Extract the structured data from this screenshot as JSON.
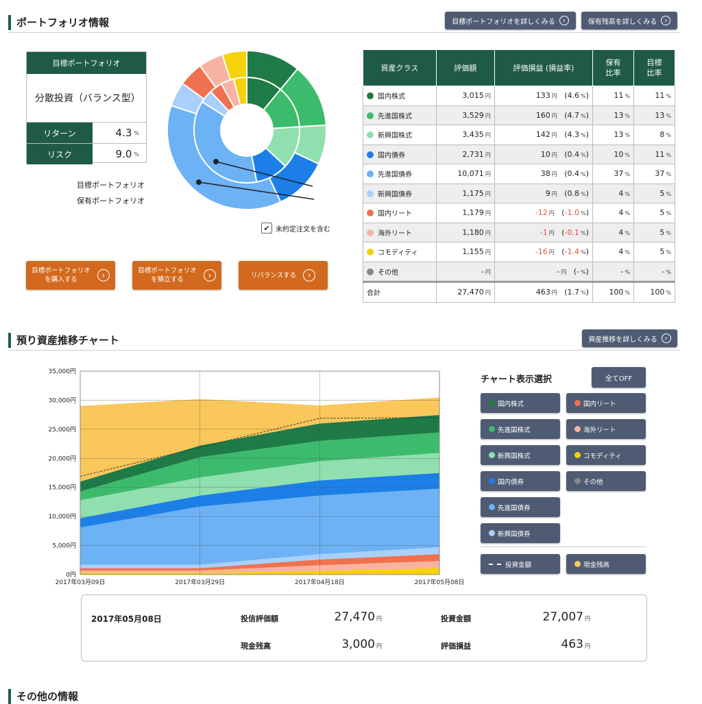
{
  "portfolio": {
    "heading": "ポートフォリオ情報",
    "btn_target_detail": "目標ポートフォリオを詳しくみる",
    "btn_holding_detail": "保有残高を詳しくみる",
    "target_box": {
      "header": "目標ポートフォリオ",
      "name": "分散投資（バランス型）",
      "return_label": "リターン",
      "return_value": "4.3",
      "risk_label": "リスク",
      "risk_value": "9.0",
      "unit": "%"
    },
    "donut": {
      "label_target": "目標ポートフォリオ",
      "label_holding": "保有ポートフォリオ",
      "checkbox_label": "未約定注文を含む",
      "checkbox_checked": true
    },
    "actions": {
      "buy_line1": "目標ポートフォリオ",
      "buy_line2": "を購入する",
      "save_line1": "目標ポートフォリオ",
      "save_line2": "を積立する",
      "rebalance": "リバランスする"
    },
    "table": {
      "headers": [
        "資産クラス",
        "評価額",
        "評価損益 (損益率)",
        "保有\n比率",
        "目標\n比率"
      ],
      "rows": [
        {
          "name": "国内株式",
          "color": "#1e7a46",
          "value": "3,015",
          "pl": "133",
          "rate": "4.6",
          "hold": "11",
          "target": "11",
          "neg": false
        },
        {
          "name": "先進国株式",
          "color": "#3dbb6c",
          "value": "3,529",
          "pl": "160",
          "rate": "4.7",
          "hold": "13",
          "target": "13",
          "neg": false
        },
        {
          "name": "新興国株式",
          "color": "#90dfae",
          "value": "3,435",
          "pl": "142",
          "rate": "4.3",
          "hold": "13",
          "target": "8",
          "neg": false
        },
        {
          "name": "国内債券",
          "color": "#1c7fe8",
          "value": "2,731",
          "pl": "10",
          "rate": "0.4",
          "hold": "10",
          "target": "11",
          "neg": false
        },
        {
          "name": "先進国債券",
          "color": "#6cb2f5",
          "value": "10,071",
          "pl": "38",
          "rate": "0.4",
          "hold": "37",
          "target": "37",
          "neg": false
        },
        {
          "name": "新興国債券",
          "color": "#a9d0fa",
          "value": "1,175",
          "pl": "9",
          "rate": "0.8",
          "hold": "4",
          "target": "5",
          "neg": false
        },
        {
          "name": "国内リート",
          "color": "#f0714f",
          "value": "1,179",
          "pl": "-12",
          "rate": "-1.0",
          "hold": "4",
          "target": "5",
          "neg": true
        },
        {
          "name": "海外リート",
          "color": "#f7b3a0",
          "value": "1,180",
          "pl": "-1",
          "rate": "-0.1",
          "hold": "4",
          "target": "5",
          "neg": true
        },
        {
          "name": "コモディティ",
          "color": "#f5d20a",
          "value": "1,155",
          "pl": "-16",
          "rate": "-1.4",
          "hold": "4",
          "target": "5",
          "neg": true
        },
        {
          "name": "その他",
          "color": "#888888",
          "value": "-",
          "pl": "-",
          "rate": "-",
          "hold": "-",
          "target": "-",
          "neg": false
        }
      ],
      "total": {
        "name": "合計",
        "value": "27,470",
        "pl": "463",
        "rate": "1.7",
        "hold": "100",
        "target": "100"
      },
      "yen": "円",
      "pct": "%"
    }
  },
  "history": {
    "heading": "預り資産推移チャート",
    "btn_detail": "資産推移を詳しくみる",
    "select_title": "チャート表示選択",
    "all_off": "全てOFF",
    "toggles": [
      {
        "label": "国内株式",
        "color": "#1e7a46"
      },
      {
        "label": "国内リート",
        "color": "#f0714f"
      },
      {
        "label": "先進国株式",
        "color": "#3dbb6c"
      },
      {
        "label": "海外リート",
        "color": "#f7b3a0"
      },
      {
        "label": "新興国株式",
        "color": "#90dfae"
      },
      {
        "label": "コモディティ",
        "color": "#f5d20a"
      },
      {
        "label": "国内債券",
        "color": "#1c7fe8"
      },
      {
        "label": "その他",
        "color": "#888888"
      },
      {
        "label": "先進国債券",
        "color": "#6cb2f5"
      },
      {
        "label": "新興国債券",
        "color": "#a9d0fa"
      }
    ],
    "invest_amount_label": "投資金額",
    "cash_label": "現金残高",
    "summary": {
      "date": "2017年05月08日",
      "fund_value_label": "投信評価額",
      "fund_value": "27,470",
      "invest_label": "投資金額",
      "invest_value": "27,007",
      "cash_label": "現金残高",
      "cash_value": "3,000",
      "pl_label": "評価損益",
      "pl_value": "463",
      "yen": "円"
    }
  },
  "other": {
    "heading": "その他の情報"
  },
  "chart_data": {
    "type": "area",
    "stacked": true,
    "x": [
      "2017年03月09日",
      "2017年03月29日",
      "2017年04月18日",
      "2017年05月08日"
    ],
    "ylim": [
      0,
      35000
    ],
    "yticks": [
      "0円",
      "5,000円",
      "10,000円",
      "15,000円",
      "20,000円",
      "25,000円",
      "30,000円",
      "35,000円"
    ],
    "grid": true,
    "series": [
      {
        "name": "コモディティ",
        "color": "#f5d20a",
        "values": [
          300,
          300,
          600,
          1155
        ]
      },
      {
        "name": "海外リート",
        "color": "#f7b3a0",
        "values": [
          400,
          400,
          1000,
          1180
        ]
      },
      {
        "name": "国内リート",
        "color": "#f0714f",
        "values": [
          400,
          400,
          1000,
          1179
        ]
      },
      {
        "name": "新興国債券",
        "color": "#a9d0fa",
        "values": [
          600,
          600,
          900,
          1175
        ]
      },
      {
        "name": "先進国債券",
        "color": "#6cb2f5",
        "values": [
          6400,
          10000,
          10100,
          10071
        ]
      },
      {
        "name": "国内債券",
        "color": "#1c7fe8",
        "values": [
          1600,
          1900,
          2600,
          2731
        ]
      },
      {
        "name": "新興国株式",
        "color": "#90dfae",
        "values": [
          3100,
          3100,
          3300,
          3435
        ]
      },
      {
        "name": "先進国株式",
        "color": "#3dbb6c",
        "values": [
          1500,
          3500,
          3500,
          3529
        ]
      },
      {
        "name": "国内株式",
        "color": "#1e7a46",
        "values": [
          1700,
          2000,
          3000,
          3015
        ]
      },
      {
        "name": "現金残高",
        "color": "#f9c75a",
        "values": [
          13000,
          8000,
          3100,
          3000
        ]
      }
    ],
    "invest_amount": [
      16900,
      21900,
      26900,
      27007
    ]
  }
}
